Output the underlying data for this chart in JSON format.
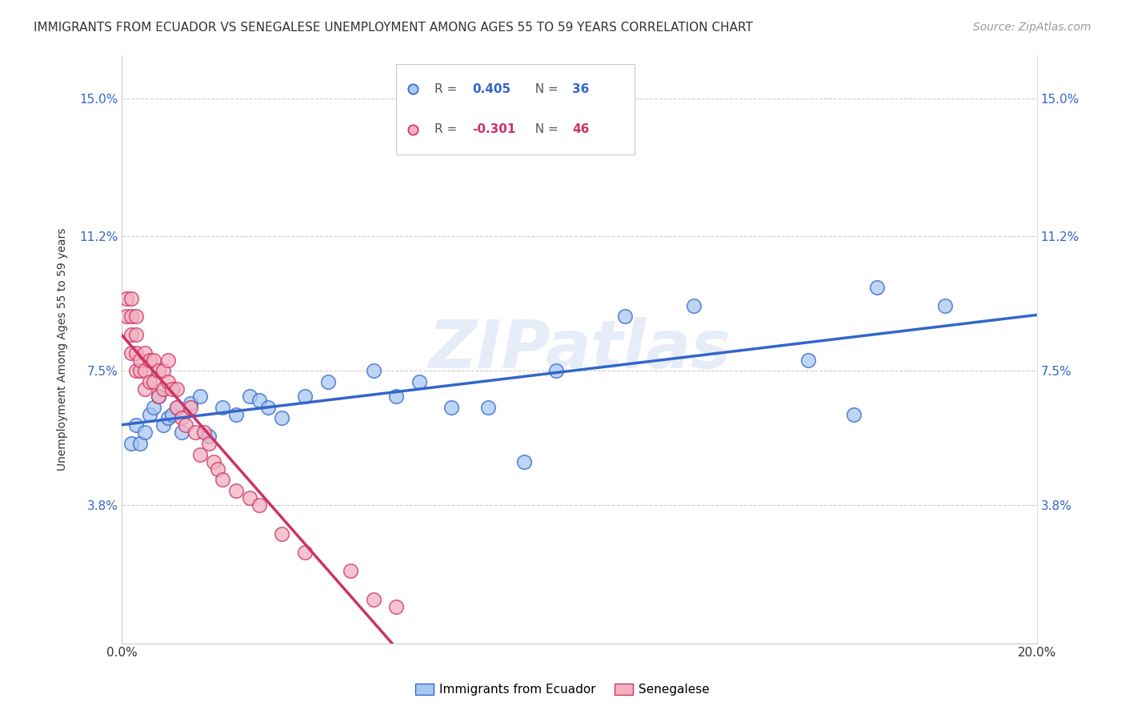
{
  "title": "IMMIGRANTS FROM ECUADOR VS SENEGALESE UNEMPLOYMENT AMONG AGES 55 TO 59 YEARS CORRELATION CHART",
  "source": "Source: ZipAtlas.com",
  "ylabel": "Unemployment Among Ages 55 to 59 years",
  "watermark": "ZIPatlas",
  "legend_ecuador": "Immigrants from Ecuador",
  "legend_senegalese": "Senegalese",
  "R_ecuador": 0.405,
  "N_ecuador": 36,
  "R_senegalese": -0.301,
  "N_senegalese": 46,
  "xlim": [
    0.0,
    0.2
  ],
  "ylim": [
    0.0,
    0.162
  ],
  "color_ecuador": "#a8c8f0",
  "color_senegalese": "#f4b0c0",
  "line_color_ecuador": "#3366cc",
  "line_color_senegalese": "#cc3366",
  "background_color": "#ffffff",
  "ecuador_x": [
    0.002,
    0.003,
    0.004,
    0.005,
    0.006,
    0.007,
    0.008,
    0.009,
    0.01,
    0.011,
    0.012,
    0.013,
    0.015,
    0.017,
    0.019,
    0.022,
    0.025,
    0.028,
    0.03,
    0.032,
    0.035,
    0.04,
    0.045,
    0.055,
    0.06,
    0.065,
    0.072,
    0.08,
    0.088,
    0.095,
    0.11,
    0.125,
    0.15,
    0.16,
    0.165,
    0.18
  ],
  "ecuador_y": [
    0.055,
    0.06,
    0.055,
    0.058,
    0.063,
    0.065,
    0.068,
    0.06,
    0.062,
    0.063,
    0.065,
    0.058,
    0.066,
    0.068,
    0.057,
    0.065,
    0.063,
    0.068,
    0.067,
    0.065,
    0.062,
    0.068,
    0.072,
    0.075,
    0.068,
    0.072,
    0.065,
    0.065,
    0.05,
    0.075,
    0.09,
    0.093,
    0.078,
    0.063,
    0.098,
    0.093
  ],
  "senegalese_x": [
    0.001,
    0.001,
    0.002,
    0.002,
    0.002,
    0.002,
    0.003,
    0.003,
    0.003,
    0.003,
    0.004,
    0.004,
    0.005,
    0.005,
    0.005,
    0.006,
    0.006,
    0.007,
    0.007,
    0.008,
    0.008,
    0.009,
    0.009,
    0.01,
    0.01,
    0.011,
    0.012,
    0.012,
    0.013,
    0.014,
    0.015,
    0.016,
    0.017,
    0.018,
    0.019,
    0.02,
    0.021,
    0.022,
    0.025,
    0.028,
    0.03,
    0.035,
    0.04,
    0.05,
    0.055,
    0.06
  ],
  "senegalese_y": [
    0.09,
    0.095,
    0.08,
    0.085,
    0.09,
    0.095,
    0.075,
    0.08,
    0.085,
    0.09,
    0.075,
    0.078,
    0.07,
    0.075,
    0.08,
    0.072,
    0.078,
    0.072,
    0.078,
    0.068,
    0.075,
    0.07,
    0.075,
    0.072,
    0.078,
    0.07,
    0.065,
    0.07,
    0.062,
    0.06,
    0.065,
    0.058,
    0.052,
    0.058,
    0.055,
    0.05,
    0.048,
    0.045,
    0.042,
    0.04,
    0.038,
    0.03,
    0.025,
    0.02,
    0.012,
    0.01
  ],
  "title_fontsize": 11,
  "tick_fontsize": 11,
  "source_fontsize": 10
}
